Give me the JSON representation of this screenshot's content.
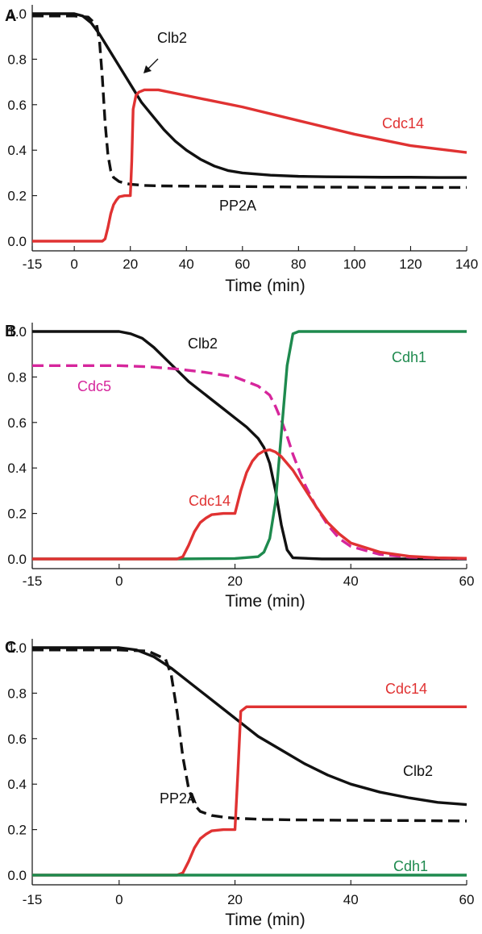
{
  "colors": {
    "black": "#111111",
    "red": "#e03232",
    "magenta": "#d6269c",
    "green": "#1e8a4e"
  },
  "chart_data": [
    {
      "panel": "A",
      "type": "line",
      "xlabel": "Time (min)",
      "ylabel": "",
      "xlim": [
        -15,
        140
      ],
      "ylim": [
        0.0,
        1.0
      ],
      "xticks": [
        "-15",
        "0",
        "20",
        "40",
        "60",
        "80",
        "100",
        "120",
        "140"
      ],
      "yticks": [
        "0.0",
        "0.2",
        "0.4",
        "0.6",
        "0.8",
        "1.0"
      ],
      "series": [
        {
          "name": "Clb2",
          "color_key": "black",
          "style": "solid",
          "x": [
            -15,
            0,
            3,
            6,
            9,
            12,
            15,
            18,
            21,
            24,
            28,
            32,
            36,
            40,
            45,
            50,
            55,
            60,
            70,
            80,
            90,
            100,
            110,
            120,
            130,
            140
          ],
          "y": [
            1.0,
            1.0,
            0.99,
            0.96,
            0.91,
            0.85,
            0.79,
            0.73,
            0.67,
            0.61,
            0.55,
            0.49,
            0.44,
            0.4,
            0.36,
            0.33,
            0.31,
            0.3,
            0.29,
            0.285,
            0.283,
            0.282,
            0.281,
            0.281,
            0.28,
            0.28
          ]
        },
        {
          "name": "PP2A",
          "color_key": "black",
          "style": "dashed",
          "x": [
            -15,
            0,
            5,
            8,
            9,
            10,
            11,
            12,
            13,
            14,
            16,
            18,
            20,
            25,
            30,
            40,
            60,
            80,
            100,
            120,
            140
          ],
          "y": [
            0.99,
            0.99,
            0.985,
            0.95,
            0.88,
            0.72,
            0.52,
            0.38,
            0.31,
            0.28,
            0.262,
            0.255,
            0.25,
            0.245,
            0.243,
            0.242,
            0.24,
            0.238,
            0.237,
            0.236,
            0.236
          ]
        },
        {
          "name": "Cdc14",
          "color_key": "red",
          "style": "solid",
          "x": [
            -15,
            10,
            11,
            12,
            13,
            14,
            15,
            16,
            18,
            20,
            20.5,
            21,
            22,
            23,
            25,
            30,
            40,
            60,
            80,
            100,
            120,
            140
          ],
          "y": [
            0.0,
            0.0,
            0.01,
            0.06,
            0.12,
            0.16,
            0.18,
            0.195,
            0.2,
            0.2,
            0.35,
            0.58,
            0.64,
            0.655,
            0.665,
            0.665,
            0.64,
            0.59,
            0.53,
            0.47,
            0.42,
            0.39
          ]
        }
      ],
      "labels": {
        "clb2": "Clb2",
        "pp2a": "PP2A",
        "cdc14": "Cdc14"
      }
    },
    {
      "panel": "B",
      "type": "line",
      "xlabel": "Time (min)",
      "ylabel": "",
      "xlim": [
        -15,
        60
      ],
      "ylim": [
        0.0,
        1.0
      ],
      "xticks": [
        "-15",
        "0",
        "20",
        "40",
        "60"
      ],
      "yticks": [
        "0.0",
        "0.2",
        "0.4",
        "0.6",
        "0.8",
        "1.0"
      ],
      "series": [
        {
          "name": "Clb2",
          "color_key": "black",
          "style": "solid",
          "x": [
            -15,
            0,
            2,
            4,
            6,
            8,
            10,
            12,
            14,
            16,
            18,
            20,
            22,
            24,
            25,
            26,
            27,
            28,
            29,
            30,
            35,
            40,
            60
          ],
          "y": [
            1.0,
            1.0,
            0.99,
            0.97,
            0.93,
            0.88,
            0.83,
            0.78,
            0.74,
            0.7,
            0.66,
            0.62,
            0.58,
            0.53,
            0.49,
            0.42,
            0.3,
            0.15,
            0.04,
            0.005,
            0.0,
            0.0,
            0.0
          ]
        },
        {
          "name": "Cdc5",
          "color_key": "magenta",
          "style": "dashed",
          "x": [
            -15,
            0,
            5,
            10,
            15,
            20,
            24,
            26,
            27,
            28,
            29,
            30,
            32,
            34,
            36,
            38,
            40,
            45,
            50,
            55,
            60
          ],
          "y": [
            0.85,
            0.85,
            0.845,
            0.835,
            0.82,
            0.8,
            0.76,
            0.72,
            0.67,
            0.61,
            0.54,
            0.46,
            0.33,
            0.23,
            0.15,
            0.09,
            0.055,
            0.02,
            0.008,
            0.004,
            0.002
          ]
        },
        {
          "name": "Cdh1",
          "color_key": "green",
          "style": "solid",
          "x": [
            -15,
            10,
            20,
            24,
            25,
            26,
            27,
            28,
            29,
            30,
            31,
            40,
            60
          ],
          "y": [
            0.0,
            0.0,
            0.002,
            0.01,
            0.03,
            0.09,
            0.25,
            0.55,
            0.85,
            0.99,
            1.0,
            1.0,
            1.0
          ]
        },
        {
          "name": "Cdc14",
          "color_key": "red",
          "style": "solid",
          "x": [
            -15,
            10,
            11,
            12,
            13,
            14,
            15,
            16,
            18,
            20,
            21,
            22,
            23,
            24,
            25,
            26,
            27,
            28,
            30,
            32,
            34,
            36,
            38,
            40,
            45,
            50,
            55,
            60
          ],
          "y": [
            0.0,
            0.0,
            0.01,
            0.06,
            0.12,
            0.16,
            0.18,
            0.195,
            0.2,
            0.2,
            0.3,
            0.38,
            0.43,
            0.46,
            0.475,
            0.48,
            0.47,
            0.45,
            0.39,
            0.31,
            0.23,
            0.16,
            0.11,
            0.07,
            0.03,
            0.012,
            0.005,
            0.003
          ]
        }
      ],
      "labels": {
        "clb2": "Clb2",
        "cdc5": "Cdc5",
        "cdc14": "Cdc14",
        "cdh1": "Cdh1"
      }
    },
    {
      "panel": "C",
      "type": "line",
      "xlabel": "Time (min)",
      "ylabel": "",
      "xlim": [
        -15,
        60
      ],
      "ylim": [
        0.0,
        1.0
      ],
      "xticks": [
        "-15",
        "0",
        "20",
        "40",
        "60"
      ],
      "yticks": [
        "0.0",
        "0.2",
        "0.4",
        "0.6",
        "0.8",
        "1.0"
      ],
      "series": [
        {
          "name": "Clb2",
          "color_key": "black",
          "style": "solid",
          "x": [
            -15,
            0,
            3,
            6,
            9,
            12,
            15,
            18,
            21,
            24,
            28,
            32,
            36,
            40,
            45,
            50,
            55,
            60
          ],
          "y": [
            1.0,
            1.0,
            0.99,
            0.96,
            0.91,
            0.85,
            0.79,
            0.73,
            0.67,
            0.61,
            0.55,
            0.49,
            0.44,
            0.4,
            0.365,
            0.34,
            0.32,
            0.31
          ]
        },
        {
          "name": "PP2A",
          "color_key": "black",
          "style": "dashed",
          "x": [
            -15,
            0,
            5,
            8,
            9,
            10,
            11,
            12,
            13,
            14,
            16,
            18,
            20,
            25,
            30,
            40,
            50,
            60
          ],
          "y": [
            0.99,
            0.99,
            0.985,
            0.95,
            0.88,
            0.72,
            0.52,
            0.38,
            0.31,
            0.28,
            0.262,
            0.255,
            0.25,
            0.245,
            0.243,
            0.241,
            0.24,
            0.238
          ]
        },
        {
          "name": "Cdc14",
          "color_key": "red",
          "style": "solid",
          "x": [
            -15,
            10,
            11,
            12,
            13,
            14,
            15,
            16,
            18,
            20,
            20.5,
            21,
            22,
            25,
            40,
            60
          ],
          "y": [
            0.0,
            0.0,
            0.01,
            0.06,
            0.12,
            0.16,
            0.18,
            0.195,
            0.2,
            0.2,
            0.45,
            0.72,
            0.74,
            0.74,
            0.74,
            0.74
          ]
        },
        {
          "name": "Cdh1",
          "color_key": "green",
          "style": "solid",
          "x": [
            -15,
            60
          ],
          "y": [
            0.0,
            0.0
          ]
        }
      ],
      "labels": {
        "cdc14": "Cdc14",
        "clb2": "Clb2",
        "pp2a": "PP2A",
        "cdh1": "Cdh1"
      }
    }
  ]
}
